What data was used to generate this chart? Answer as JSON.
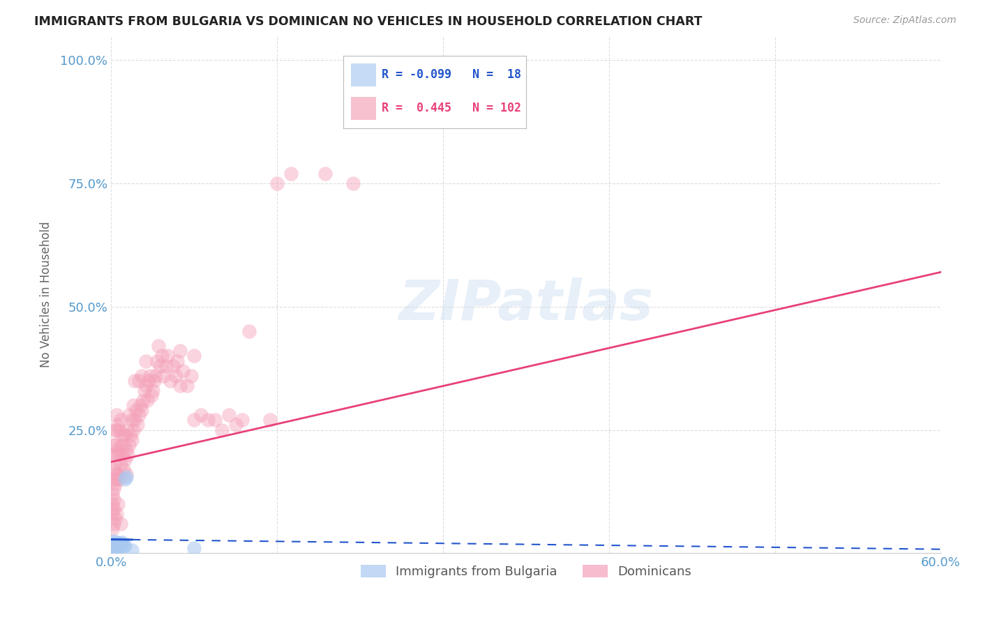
{
  "title": "IMMIGRANTS FROM BULGARIA VS DOMINICAN NO VEHICLES IN HOUSEHOLD CORRELATION CHART",
  "source": "Source: ZipAtlas.com",
  "ylabel": "No Vehicles in Household",
  "legend_blue_R": "-0.099",
  "legend_blue_N": "18",
  "legend_pink_R": "0.445",
  "legend_pink_N": "102",
  "legend_label_blue": "Immigrants from Bulgaria",
  "legend_label_pink": "Dominicans",
  "watermark": "ZIPatlas",
  "bg_color": "#ffffff",
  "grid_color": "#dddddd",
  "blue_color": "#a8c8f0",
  "pink_color": "#f4a0b8",
  "blue_line_color": "#2255cc",
  "pink_line_color": "#e8407a",
  "title_color": "#222222",
  "axis_label_color": "#5599cc",
  "blue_scatter": [
    [
      0.001,
      0.02
    ],
    [
      0.002,
      0.015
    ],
    [
      0.002,
      0.025
    ],
    [
      0.003,
      0.01
    ],
    [
      0.003,
      0.018
    ],
    [
      0.004,
      0.012
    ],
    [
      0.004,
      0.022
    ],
    [
      0.005,
      0.008
    ],
    [
      0.005,
      0.015
    ],
    [
      0.006,
      0.018
    ],
    [
      0.007,
      0.02
    ],
    [
      0.008,
      0.022
    ],
    [
      0.009,
      0.016
    ],
    [
      0.01,
      0.015
    ],
    [
      0.01,
      0.15
    ],
    [
      0.011,
      0.155
    ],
    [
      0.015,
      0.006
    ],
    [
      0.06,
      0.01
    ]
  ],
  "pink_scatter": [
    [
      0.001,
      0.05
    ],
    [
      0.001,
      0.08
    ],
    [
      0.001,
      0.1
    ],
    [
      0.001,
      0.12
    ],
    [
      0.002,
      0.06
    ],
    [
      0.002,
      0.09
    ],
    [
      0.002,
      0.11
    ],
    [
      0.002,
      0.13
    ],
    [
      0.002,
      0.15
    ],
    [
      0.002,
      0.17
    ],
    [
      0.002,
      0.2
    ],
    [
      0.002,
      0.22
    ],
    [
      0.003,
      0.07
    ],
    [
      0.003,
      0.14
    ],
    [
      0.003,
      0.16
    ],
    [
      0.003,
      0.18
    ],
    [
      0.003,
      0.22
    ],
    [
      0.003,
      0.25
    ],
    [
      0.004,
      0.08
    ],
    [
      0.004,
      0.15
    ],
    [
      0.004,
      0.2
    ],
    [
      0.004,
      0.25
    ],
    [
      0.004,
      0.28
    ],
    [
      0.005,
      0.1
    ],
    [
      0.005,
      0.16
    ],
    [
      0.005,
      0.21
    ],
    [
      0.005,
      0.26
    ],
    [
      0.006,
      0.15
    ],
    [
      0.006,
      0.2
    ],
    [
      0.006,
      0.25
    ],
    [
      0.007,
      0.06
    ],
    [
      0.007,
      0.18
    ],
    [
      0.007,
      0.22
    ],
    [
      0.007,
      0.27
    ],
    [
      0.008,
      0.2
    ],
    [
      0.008,
      0.24
    ],
    [
      0.009,
      0.17
    ],
    [
      0.009,
      0.22
    ],
    [
      0.01,
      0.19
    ],
    [
      0.01,
      0.24
    ],
    [
      0.011,
      0.16
    ],
    [
      0.011,
      0.21
    ],
    [
      0.012,
      0.2
    ],
    [
      0.012,
      0.25
    ],
    [
      0.013,
      0.22
    ],
    [
      0.013,
      0.28
    ],
    [
      0.014,
      0.24
    ],
    [
      0.015,
      0.23
    ],
    [
      0.015,
      0.27
    ],
    [
      0.016,
      0.25
    ],
    [
      0.016,
      0.3
    ],
    [
      0.017,
      0.27
    ],
    [
      0.017,
      0.35
    ],
    [
      0.018,
      0.29
    ],
    [
      0.019,
      0.26
    ],
    [
      0.02,
      0.28
    ],
    [
      0.02,
      0.35
    ],
    [
      0.021,
      0.3
    ],
    [
      0.022,
      0.29
    ],
    [
      0.022,
      0.36
    ],
    [
      0.023,
      0.31
    ],
    [
      0.024,
      0.33
    ],
    [
      0.025,
      0.34
    ],
    [
      0.025,
      0.39
    ],
    [
      0.026,
      0.31
    ],
    [
      0.027,
      0.35
    ],
    [
      0.028,
      0.36
    ],
    [
      0.029,
      0.32
    ],
    [
      0.03,
      0.33
    ],
    [
      0.031,
      0.35
    ],
    [
      0.032,
      0.36
    ],
    [
      0.033,
      0.39
    ],
    [
      0.034,
      0.42
    ],
    [
      0.035,
      0.38
    ],
    [
      0.037,
      0.4
    ],
    [
      0.038,
      0.36
    ],
    [
      0.04,
      0.38
    ],
    [
      0.041,
      0.4
    ],
    [
      0.043,
      0.35
    ],
    [
      0.045,
      0.38
    ],
    [
      0.047,
      0.36
    ],
    [
      0.048,
      0.39
    ],
    [
      0.05,
      0.34
    ],
    [
      0.05,
      0.41
    ],
    [
      0.052,
      0.37
    ],
    [
      0.055,
      0.34
    ],
    [
      0.058,
      0.36
    ],
    [
      0.06,
      0.27
    ],
    [
      0.06,
      0.4
    ],
    [
      0.065,
      0.28
    ],
    [
      0.07,
      0.27
    ],
    [
      0.075,
      0.27
    ],
    [
      0.08,
      0.25
    ],
    [
      0.085,
      0.28
    ],
    [
      0.09,
      0.26
    ],
    [
      0.095,
      0.27
    ],
    [
      0.1,
      0.45
    ],
    [
      0.115,
      0.27
    ],
    [
      0.12,
      0.75
    ],
    [
      0.13,
      0.77
    ],
    [
      0.155,
      0.77
    ],
    [
      0.175,
      0.75
    ]
  ],
  "xlim": [
    0,
    0.6
  ],
  "ylim": [
    0,
    1.05
  ],
  "yticks": [
    0.0,
    0.25,
    0.5,
    0.75,
    1.0
  ],
  "ytick_labels": [
    "",
    "25.0%",
    "50.0%",
    "75.0%",
    "100.0%"
  ],
  "xtick_left": "0.0%",
  "xtick_right": "60.0%",
  "pink_line_start_y": 0.185,
  "pink_line_end_y": 0.57,
  "blue_line_start_y": 0.028,
  "blue_line_end_y": 0.008
}
